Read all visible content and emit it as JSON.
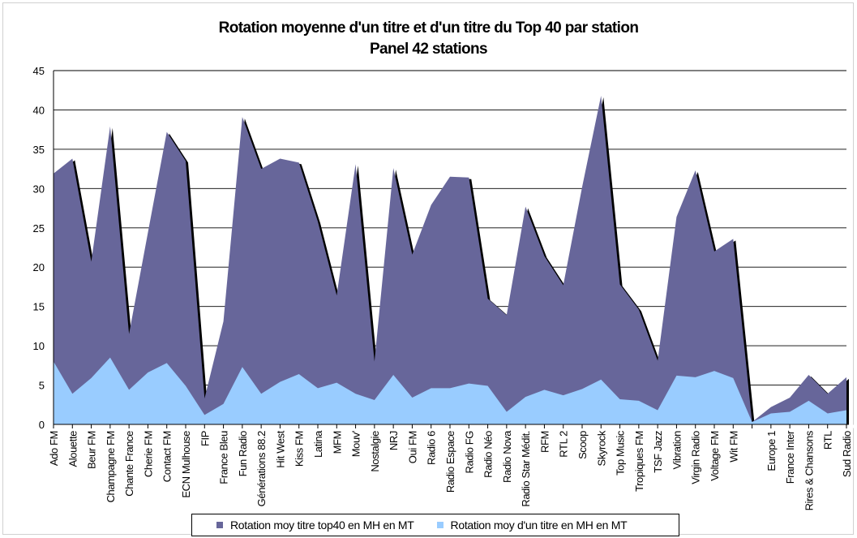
{
  "chart_data": {
    "type": "area",
    "title": "Rotation moyenne d'un titre et d'un titre du Top 40 par station",
    "subtitle": "Panel 42 stations",
    "ylim": [
      0,
      45
    ],
    "yticks": [
      0,
      5,
      10,
      15,
      20,
      25,
      30,
      35,
      40,
      45
    ],
    "grid": true,
    "legend_position": "bottom",
    "categories": [
      "Ado FM",
      "Alouette",
      "Beur FM",
      "Champagne FM",
      "Chante France",
      "Cherie FM",
      "Contact FM",
      "ECN Mulhouse",
      "FIP",
      "France Bleu",
      "Fun Radio",
      "Générations 88.2",
      "Hit West",
      "Kiss FM",
      "Latina",
      "MFM",
      "Mouv'",
      "Nostalgie",
      "NRJ",
      "Oui FM",
      "Radio 6",
      "Radio Espace",
      "Radio FG",
      "Radio Néo",
      "Radio Nova",
      "Radio Star Médit.",
      "RFM",
      "RTL 2",
      "Scoop",
      "Skyrock",
      "Top Music",
      "Tropiques FM",
      "TSF Jazz",
      "Vibration",
      "Virgin Radio",
      "Voltage FM",
      "Wit FM",
      "",
      "Europe 1",
      "France Inter",
      "Rires & Chansons",
      "RTL",
      "Sud Radio"
    ],
    "series": [
      {
        "name": "Rotation moy titre top40 en MH en MT",
        "color": "#67669a",
        "values": [
          31.9,
          33.8,
          20.7,
          37.9,
          11.5,
          24.4,
          37.2,
          33.5,
          3.3,
          13.1,
          39.1,
          32.5,
          33.8,
          33.3,
          25.8,
          16.4,
          33.1,
          8.0,
          32.6,
          21.6,
          27.9,
          31.5,
          31.4,
          16.0,
          13.9,
          27.7,
          21.4,
          17.7,
          30.2,
          41.8,
          17.8,
          14.6,
          8.1,
          26.4,
          32.3,
          22.0,
          23.6,
          0.3,
          2.2,
          3.4,
          6.3,
          3.9,
          6.0
        ]
      },
      {
        "name": "Rotation moy d'un titre en MH en MT",
        "color": "#99ccff",
        "values": [
          8.0,
          3.9,
          5.9,
          8.5,
          4.4,
          6.6,
          7.8,
          4.9,
          1.2,
          2.6,
          7.3,
          3.9,
          5.4,
          6.4,
          4.6,
          5.3,
          3.9,
          3.1,
          6.3,
          3.4,
          4.6,
          4.6,
          5.2,
          4.9,
          1.6,
          3.5,
          4.4,
          3.7,
          4.5,
          5.7,
          3.2,
          3.0,
          1.8,
          6.2,
          6.0,
          6.8,
          5.9,
          0.3,
          1.4,
          1.6,
          3.0,
          1.4,
          1.8
        ]
      }
    ]
  }
}
